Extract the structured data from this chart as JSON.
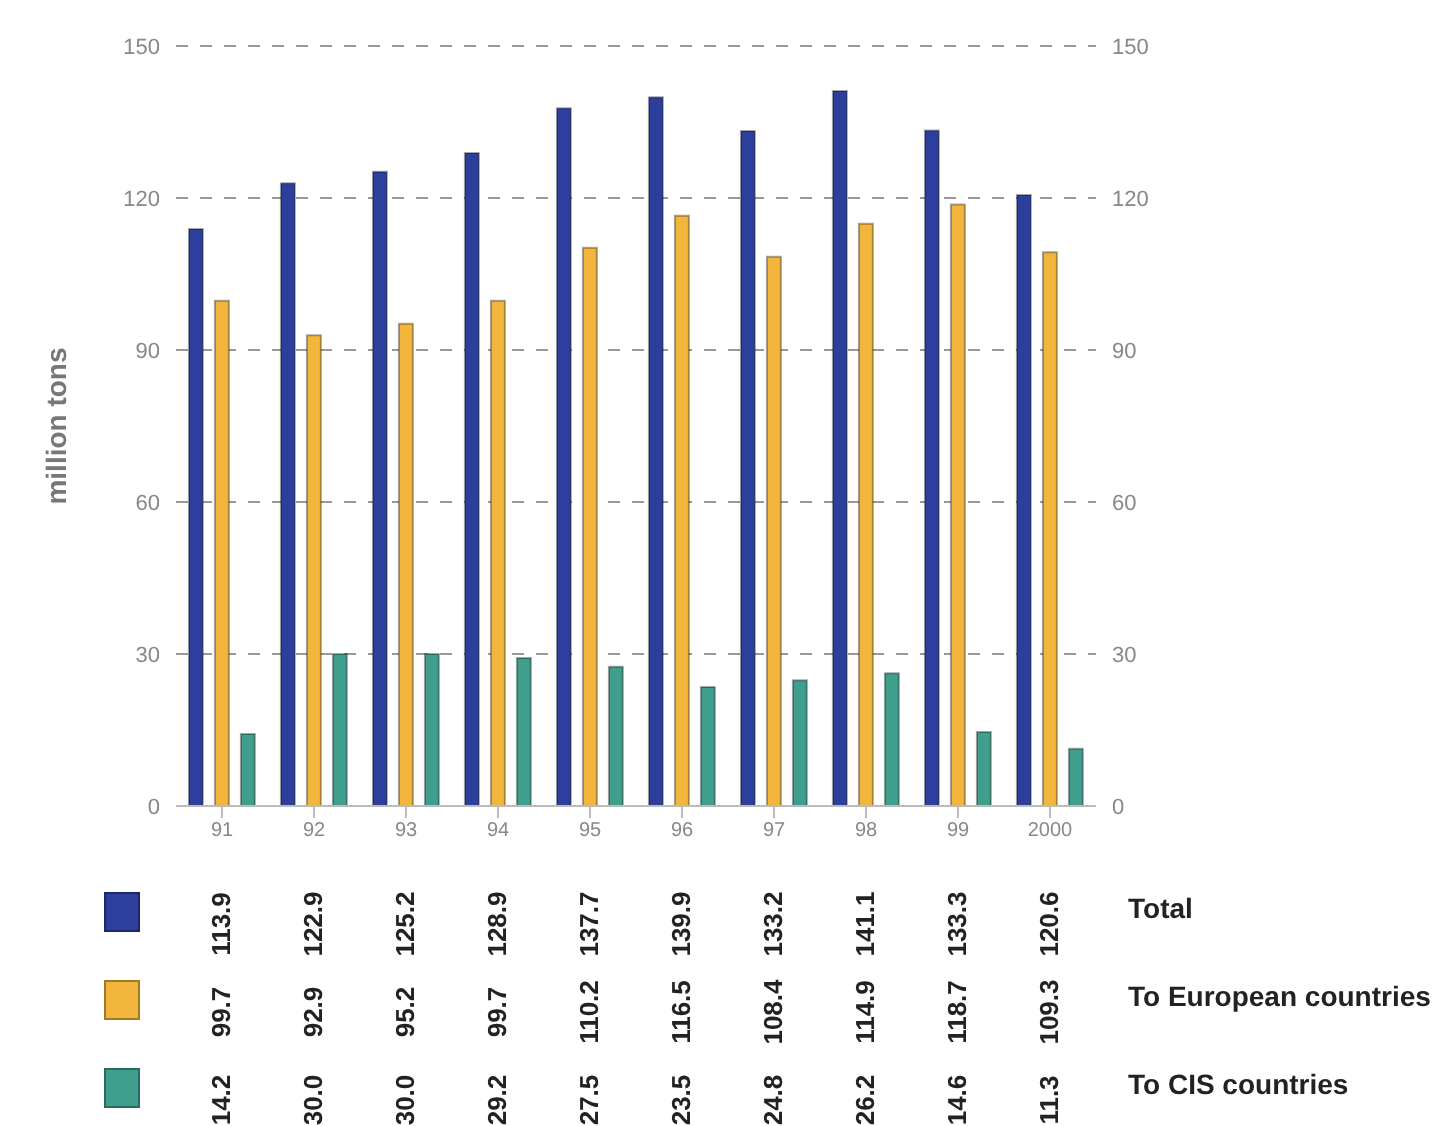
{
  "chart_data": {
    "type": "bar",
    "ylabel": "million tons",
    "categories": [
      "91",
      "92",
      "93",
      "94",
      "95",
      "96",
      "97",
      "98",
      "99",
      "2000"
    ],
    "series": [
      {
        "name": "Total",
        "color": "#2d3f9c",
        "values": [
          113.9,
          122.9,
          125.2,
          128.9,
          137.7,
          139.9,
          133.2,
          141.1,
          133.3,
          120.6
        ],
        "value_labels": [
          "113.9",
          "122.9",
          "125.2",
          "128.9",
          "137.7",
          "139.9",
          "133.2",
          "141.1",
          "133.3",
          "120.6"
        ]
      },
      {
        "name": "To European countries",
        "color": "#f2b63c",
        "values": [
          99.7,
          92.9,
          95.2,
          99.7,
          110.2,
          116.5,
          108.4,
          114.9,
          118.7,
          109.3
        ],
        "value_labels": [
          "99.7",
          "92.9",
          "95.2",
          "99.7",
          "110.2",
          "116.5",
          "108.4",
          "114.9",
          "118.7",
          "109.3"
        ]
      },
      {
        "name": "To CIS countries",
        "color": "#3f9f8c",
        "values": [
          14.2,
          30.0,
          30.0,
          29.2,
          27.5,
          23.5,
          24.8,
          26.2,
          14.6,
          11.3
        ],
        "value_labels": [
          "14.2",
          "30.0",
          "30.0",
          "29.2",
          "27.5",
          "23.5",
          "24.8",
          "26.2",
          "14.6",
          "11.3"
        ]
      }
    ],
    "ylim": [
      0,
      150
    ],
    "yticks": [
      0,
      30,
      60,
      90,
      120,
      150
    ],
    "y2lim": [
      0,
      150
    ],
    "y2ticks": [
      0,
      30,
      60,
      90,
      120,
      150
    ],
    "grid": "y",
    "legend": "bottom"
  }
}
